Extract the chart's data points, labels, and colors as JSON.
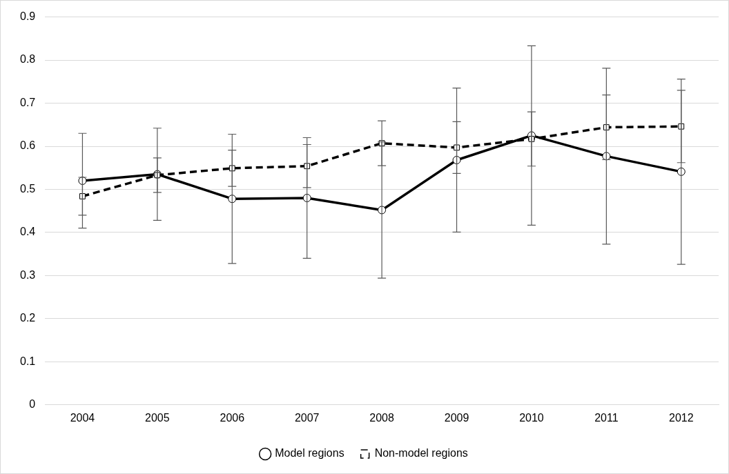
{
  "chart_data": {
    "type": "line",
    "categories": [
      "2004",
      "2005",
      "2006",
      "2007",
      "2008",
      "2009",
      "2010",
      "2011",
      "2012"
    ],
    "series": [
      {
        "name": "Model regions",
        "color": "#000000",
        "marker": "circle",
        "line_style": "solid",
        "values": [
          0.52,
          0.535,
          0.478,
          0.48,
          0.452,
          0.568,
          0.625,
          0.577,
          0.541
        ],
        "errors": [
          0.11,
          0.107,
          0.15,
          0.14,
          0.158,
          0.167,
          0.208,
          0.204,
          0.215
        ]
      },
      {
        "name": "Non-model regions",
        "color": "#000000",
        "marker": "square",
        "line_style": "dashed",
        "values": [
          0.484,
          0.533,
          0.549,
          0.554,
          0.607,
          0.597,
          0.617,
          0.644,
          0.646
        ],
        "errors": [
          0.044,
          0.04,
          0.042,
          0.05,
          0.052,
          0.06,
          0.063,
          0.075,
          0.084
        ]
      }
    ],
    "ylim": [
      0,
      0.9
    ],
    "yticks": [
      0,
      0.1,
      0.2,
      0.3,
      0.4,
      0.5,
      0.6,
      0.7,
      0.8,
      0.9
    ],
    "grid": "y",
    "legend": "bottom"
  }
}
